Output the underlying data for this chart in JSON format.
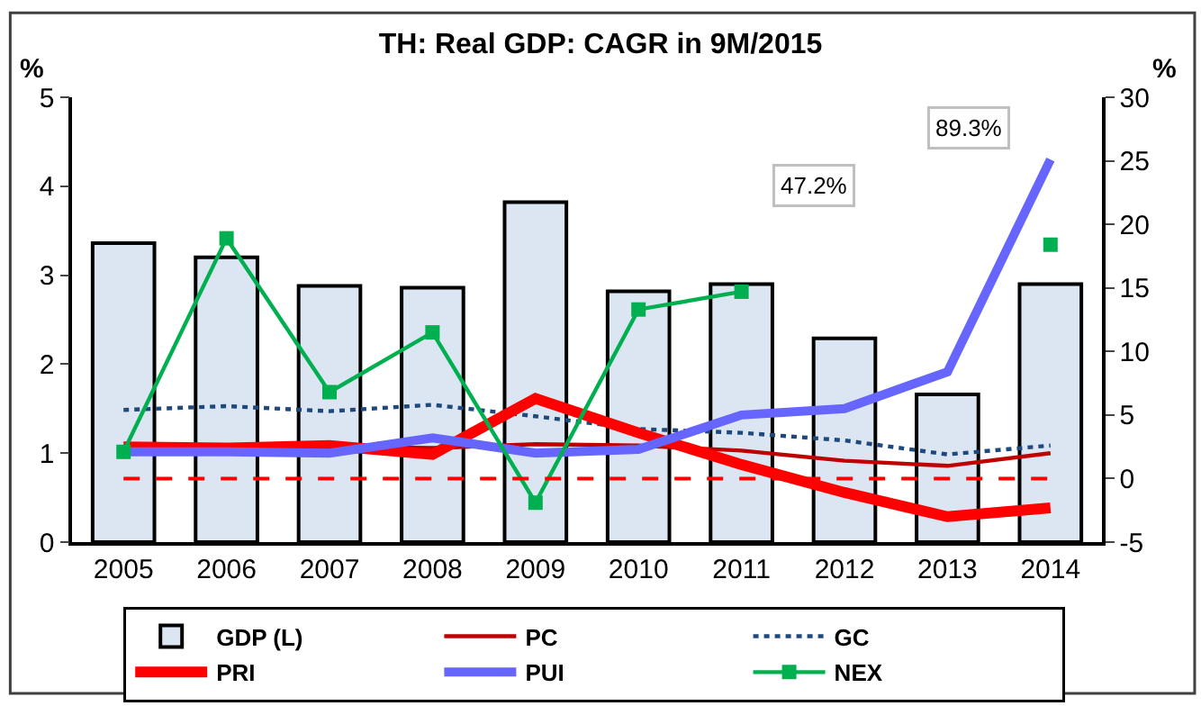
{
  "chart_data": {
    "type": "bar",
    "title": "TH: Real GDP: CAGR in 9M/2015",
    "ylabel": "%",
    "y2label": "%",
    "categories": [
      "2005",
      "2006",
      "2007",
      "2008",
      "2009",
      "2010",
      "2011",
      "2012",
      "2013",
      "2014"
    ],
    "series": [
      {
        "name": "GDP (L)",
        "color": "#dce6f2",
        "values": [
          3.36,
          3.2,
          2.88,
          2.86,
          3.82,
          2.82,
          2.9,
          2.29,
          1.66,
          2.9
        ]
      },
      {
        "name": "PC",
        "type": "line",
        "axis": "y2",
        "color": "#c00000",
        "line_style": "solid",
        "values": [
          2.5,
          2.4,
          2.5,
          2.4,
          2.7,
          2.6,
          2.2,
          1.4,
          1.0,
          2.0
        ]
      },
      {
        "name": "GC",
        "type": "line",
        "axis": "y2",
        "color": "#1f497d",
        "line_style": "dotted",
        "values": [
          5.4,
          5.7,
          5.3,
          5.8,
          4.9,
          3.9,
          3.6,
          3.0,
          1.9,
          2.6
        ]
      },
      {
        "name": "PRI",
        "type": "line",
        "axis": "y2",
        "color": "#ff0000",
        "line_style": "solid",
        "values": [
          2.5,
          2.4,
          2.6,
          1.9,
          6.3,
          3.6,
          1.1,
          -1.1,
          -3.0,
          -2.3
        ]
      },
      {
        "name": "PUI",
        "type": "line",
        "axis": "y2",
        "color": "#6666ff",
        "line_style": "solid",
        "values": [
          2.1,
          2.1,
          2.0,
          3.2,
          2.0,
          2.3,
          5.0,
          5.5,
          8.4,
          25.1
        ]
      },
      {
        "name": "NEX",
        "type": "line",
        "axis": "y2",
        "color": "#00b050",
        "line_style": "solid",
        "marker": "square",
        "values": [
          2.1,
          18.9,
          6.8,
          11.5,
          -1.9,
          13.3,
          14.7,
          null,
          null,
          18.4
        ]
      }
    ],
    "annotations": [
      "47.2%",
      "89.3%"
    ],
    "ylim": [
      0,
      5
    ],
    "yticks": [
      0,
      1,
      2,
      3,
      4,
      5
    ],
    "y2lim": [
      -5,
      30
    ],
    "y2ticks": [
      -5,
      0,
      5,
      10,
      15,
      20,
      25,
      30
    ],
    "ref_lines": [
      {
        "axis": "y2",
        "value": 0,
        "color": "#ff0000",
        "line_style": "dashed"
      }
    ],
    "grid": false,
    "legend": "bottom"
  }
}
